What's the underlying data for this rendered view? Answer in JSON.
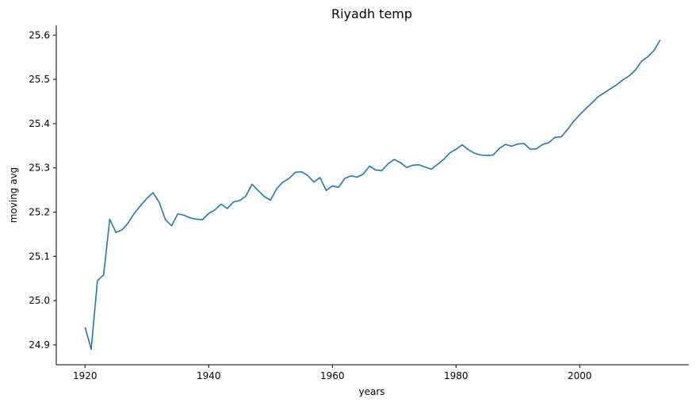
{
  "chart_data": {
    "type": "line",
    "title": "Riyadh temp",
    "xlabel": "years",
    "ylabel": "moving avg",
    "xlim": [
      1915.35,
      2017.65
    ],
    "ylim": [
      24.855,
      25.622
    ],
    "xticks": [
      1920,
      1940,
      1960,
      1980,
      2000
    ],
    "yticks": [
      24.9,
      25.0,
      25.1,
      25.2,
      25.3,
      25.4,
      25.5,
      25.6
    ],
    "ytick_labels": [
      "24.9",
      "25.0",
      "25.1",
      "25.2",
      "25.3",
      "25.4",
      "25.5",
      "25.6"
    ],
    "grid": false,
    "line_color": "#1f77b4",
    "series": [
      {
        "x": [
          1920,
          1921,
          1922,
          1923,
          1924,
          1925,
          1926,
          1927,
          1928,
          1929,
          1930,
          1931,
          1932,
          1933,
          1934,
          1935,
          1936,
          1937,
          1938,
          1939,
          1940,
          1941,
          1942,
          1943,
          1944,
          1945,
          1946,
          1947,
          1948,
          1949,
          1950,
          1951,
          1952,
          1953,
          1954,
          1955,
          1956,
          1957,
          1958,
          1959,
          1960,
          1961,
          1962,
          1963,
          1964,
          1965,
          1966,
          1967,
          1968,
          1969,
          1970,
          1971,
          1972,
          1973,
          1974,
          1975,
          1976,
          1977,
          1978,
          1979,
          1980,
          1981,
          1982,
          1983,
          1984,
          1985,
          1986,
          1987,
          1988,
          1989,
          1990,
          1991,
          1992,
          1993,
          1994,
          1995,
          1996,
          1997,
          1998,
          1999,
          2000,
          2001,
          2002,
          2003,
          2004,
          2005,
          2006,
          2007,
          2008,
          2009,
          2010,
          2011,
          2012,
          2013
        ],
        "values": [
          24.94,
          24.89,
          25.045,
          25.058,
          25.184,
          25.154,
          25.16,
          25.176,
          25.198,
          25.215,
          25.231,
          25.244,
          25.222,
          25.183,
          25.169,
          25.196,
          25.193,
          25.187,
          25.184,
          25.183,
          25.197,
          25.205,
          25.218,
          25.208,
          25.223,
          25.226,
          25.236,
          25.263,
          25.249,
          25.235,
          25.227,
          25.253,
          25.268,
          25.276,
          25.29,
          25.291,
          25.283,
          25.268,
          25.278,
          25.249,
          25.259,
          25.256,
          25.276,
          25.282,
          25.279,
          25.286,
          25.304,
          25.295,
          25.294,
          25.309,
          25.319,
          25.312,
          25.301,
          25.306,
          25.307,
          25.302,
          25.297,
          25.308,
          25.319,
          25.334,
          25.342,
          25.352,
          25.341,
          25.333,
          25.329,
          25.328,
          25.329,
          25.344,
          25.353,
          25.349,
          25.354,
          25.355,
          25.342,
          25.343,
          25.353,
          25.357,
          25.369,
          25.37,
          25.386,
          25.405,
          25.42,
          25.434,
          25.447,
          25.461,
          25.47,
          25.479,
          25.488,
          25.499,
          25.508,
          25.521,
          25.541,
          25.551,
          25.565,
          25.589
        ]
      }
    ]
  }
}
